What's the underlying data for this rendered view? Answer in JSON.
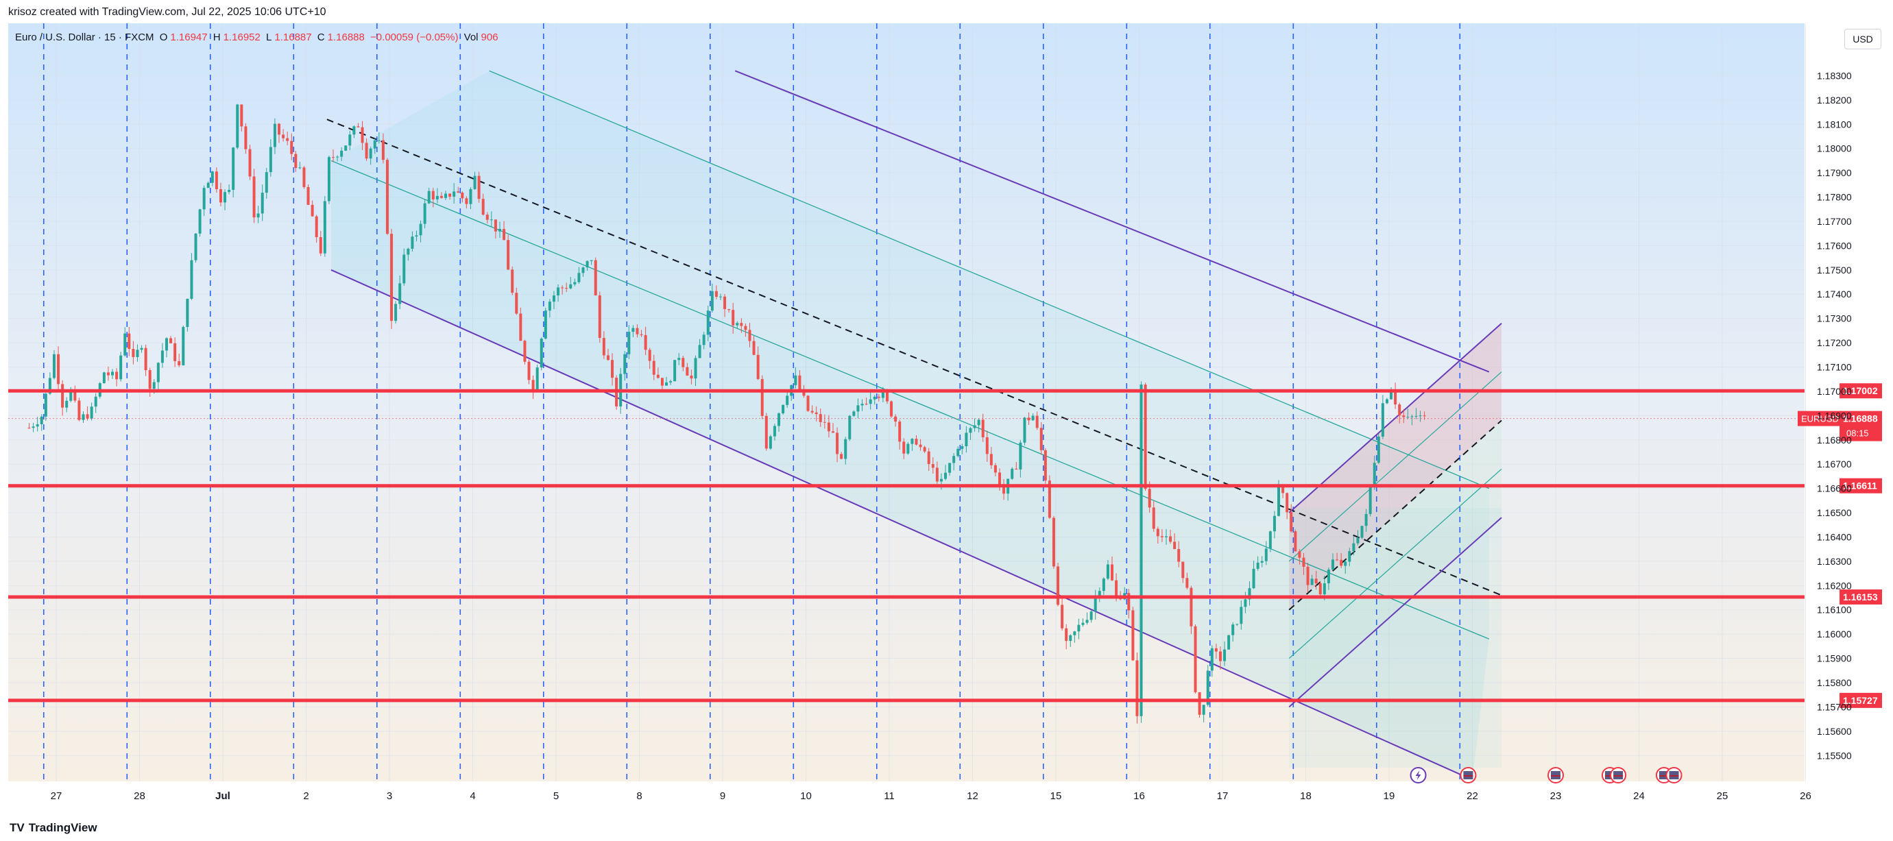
{
  "header": {
    "credit": "krisoz created with TradingView.com, Jul 22, 2025 10:06 UTC+10"
  },
  "legend": {
    "symbol": "Euro / U.S. Dollar · 15 · FXCM",
    "open_label": "O",
    "open": "1.16947",
    "high_label": "H",
    "high": "1.16952",
    "low_label": "L",
    "low": "1.16887",
    "close_label": "C",
    "close": "1.16888",
    "change": "−0.00059 (−0.05%)",
    "vol_label": "Vol",
    "vol": "906"
  },
  "currency_button": "USD",
  "footer": {
    "brand": "TradingView",
    "logo": "TV"
  },
  "colors": {
    "up": "#26a69a",
    "down": "#ef5350",
    "level": "#f23645",
    "channel": "#673ab7",
    "fib": "#26a69a",
    "vline": "#2962ff"
  },
  "chart_data": {
    "type": "line",
    "symbol": "EURUSD",
    "ylim": [
      1.1545,
      1.184
    ],
    "y_ticks": [
      "1.18300",
      "1.18200",
      "1.18100",
      "1.18000",
      "1.17900",
      "1.17800",
      "1.17700",
      "1.17600",
      "1.17500",
      "1.17400",
      "1.17300",
      "1.17200",
      "1.17100",
      "1.17000",
      "1.16900",
      "1.16800",
      "1.16700",
      "1.16600",
      "1.16500",
      "1.16400",
      "1.16300",
      "1.16200",
      "1.16100",
      "1.16000",
      "1.15900",
      "1.15800",
      "1.15700",
      "1.15600",
      "1.15500"
    ],
    "x_ticks": [
      "27",
      "28",
      "Jul",
      "2",
      "3",
      "4",
      "5",
      "8",
      "9",
      "10",
      "11",
      "12",
      "15",
      "16",
      "17",
      "18",
      "19",
      "22",
      "23",
      "24",
      "25",
      "26"
    ],
    "x_tick_index": [
      0,
      1,
      2,
      3,
      4,
      5,
      6,
      7,
      8,
      9,
      10,
      11,
      12,
      13,
      14,
      15,
      16,
      17,
      18,
      19,
      20,
      21
    ],
    "horizontal_levels": [
      {
        "value": 1.17002,
        "label": "1.17002"
      },
      {
        "value": 1.16611,
        "label": "1.16611"
      },
      {
        "value": 1.16153,
        "label": "1.16153"
      },
      {
        "value": 1.15727,
        "label": "1.15727"
      }
    ],
    "current_price": {
      "symbol": "EURUSD",
      "value": 1.16888,
      "label": "1.16888",
      "countdown": "08:15"
    },
    "price_path": [
      [
        -0.3,
        1.1685
      ],
      [
        -0.15,
        1.169
      ],
      [
        0.0,
        1.1715
      ],
      [
        0.1,
        1.1695
      ],
      [
        0.2,
        1.17
      ],
      [
        0.3,
        1.1688
      ],
      [
        0.45,
        1.1692
      ],
      [
        0.6,
        1.1708
      ],
      [
        0.75,
        1.1705
      ],
      [
        0.85,
        1.1725
      ],
      [
        0.95,
        1.1712
      ],
      [
        1.05,
        1.172
      ],
      [
        1.15,
        1.17
      ],
      [
        1.25,
        1.1712
      ],
      [
        1.35,
        1.1722
      ],
      [
        1.5,
        1.171
      ],
      [
        1.6,
        1.174
      ],
      [
        1.7,
        1.1765
      ],
      [
        1.8,
        1.1785
      ],
      [
        1.9,
        1.179
      ],
      [
        2.0,
        1.178
      ],
      [
        2.1,
        1.1782
      ],
      [
        2.2,
        1.182
      ],
      [
        2.3,
        1.18
      ],
      [
        2.42,
        1.1768
      ],
      [
        2.5,
        1.1782
      ],
      [
        2.65,
        1.1808
      ],
      [
        2.8,
        1.1802
      ],
      [
        2.95,
        1.179
      ],
      [
        3.1,
        1.177
      ],
      [
        3.2,
        1.1758
      ],
      [
        3.3,
        1.1795
      ],
      [
        3.5,
        1.1802
      ],
      [
        3.65,
        1.181
      ],
      [
        3.75,
        1.1798
      ],
      [
        3.88,
        1.1805
      ],
      [
        3.97,
        1.179
      ],
      [
        4.05,
        1.1728
      ],
      [
        4.2,
        1.1755
      ],
      [
        4.35,
        1.1765
      ],
      [
        4.5,
        1.1782
      ],
      [
        4.65,
        1.1778
      ],
      [
        4.8,
        1.1783
      ],
      [
        4.95,
        1.1778
      ],
      [
        5.05,
        1.1788
      ],
      [
        5.15,
        1.1775
      ],
      [
        5.25,
        1.177
      ],
      [
        5.4,
        1.1762
      ],
      [
        5.5,
        1.174
      ],
      [
        5.6,
        1.172
      ],
      [
        5.75,
        1.17
      ],
      [
        5.9,
        1.1735
      ],
      [
        6.05,
        1.1742
      ],
      [
        6.25,
        1.1745
      ],
      [
        6.45,
        1.1755
      ],
      [
        6.55,
        1.1722
      ],
      [
        6.65,
        1.1712
      ],
      [
        6.75,
        1.1695
      ],
      [
        6.9,
        1.1726
      ],
      [
        7.05,
        1.1725
      ],
      [
        7.2,
        1.1708
      ],
      [
        7.35,
        1.1702
      ],
      [
        7.5,
        1.1715
      ],
      [
        7.65,
        1.1705
      ],
      [
        7.8,
        1.1725
      ],
      [
        7.92,
        1.1742
      ],
      [
        8.05,
        1.1735
      ],
      [
        8.15,
        1.1728
      ],
      [
        8.3,
        1.1725
      ],
      [
        8.42,
        1.1712
      ],
      [
        8.5,
        1.169
      ],
      [
        8.55,
        1.1678
      ],
      [
        8.68,
        1.169
      ],
      [
        8.8,
        1.17
      ],
      [
        8.9,
        1.1705
      ],
      [
        9.05,
        1.1692
      ],
      [
        9.2,
        1.1688
      ],
      [
        9.35,
        1.1682
      ],
      [
        9.45,
        1.167
      ],
      [
        9.55,
        1.1688
      ],
      [
        9.7,
        1.1695
      ],
      [
        9.85,
        1.17
      ],
      [
        9.95,
        1.1698
      ],
      [
        10.1,
        1.1688
      ],
      [
        10.2,
        1.1675
      ],
      [
        10.35,
        1.168
      ],
      [
        10.5,
        1.167
      ],
      [
        10.65,
        1.1662
      ],
      [
        10.8,
        1.1673
      ],
      [
        10.95,
        1.1682
      ],
      [
        11.1,
        1.1688
      ],
      [
        11.25,
        1.167
      ],
      [
        11.4,
        1.1658
      ],
      [
        11.55,
        1.167
      ],
      [
        11.65,
        1.1688
      ],
      [
        11.75,
        1.169
      ],
      [
        11.83,
        1.168
      ],
      [
        11.92,
        1.166
      ],
      [
        11.98,
        1.1638
      ],
      [
        12.05,
        1.161
      ],
      [
        12.15,
        1.1595
      ],
      [
        12.3,
        1.1603
      ],
      [
        12.45,
        1.161
      ],
      [
        12.55,
        1.162
      ],
      [
        12.65,
        1.1628
      ],
      [
        12.75,
        1.1615
      ],
      [
        12.85,
        1.1618
      ],
      [
        12.92,
        1.1605
      ],
      [
        12.98,
        1.157
      ],
      [
        13.0,
        1.1568
      ],
      [
        13.03,
        1.168
      ],
      [
        13.06,
        1.1712
      ],
      [
        13.1,
        1.166
      ],
      [
        13.2,
        1.1645
      ],
      [
        13.3,
        1.164
      ],
      [
        13.45,
        1.1635
      ],
      [
        13.55,
        1.1625
      ],
      [
        13.62,
        1.1615
      ],
      [
        13.7,
        1.1578
      ],
      [
        13.78,
        1.156
      ],
      [
        13.83,
        1.1585
      ],
      [
        13.9,
        1.1592
      ],
      [
        14.0,
        1.159
      ],
      [
        14.1,
        1.1598
      ],
      [
        14.25,
        1.161
      ],
      [
        14.4,
        1.1625
      ],
      [
        14.55,
        1.1635
      ],
      [
        14.72,
        1.1662
      ],
      [
        14.8,
        1.1652
      ],
      [
        14.9,
        1.1635
      ],
      [
        15.05,
        1.1622
      ],
      [
        15.2,
        1.1618
      ],
      [
        15.35,
        1.163
      ],
      [
        15.5,
        1.1628
      ],
      [
        15.6,
        1.1638
      ],
      [
        15.75,
        1.1648
      ],
      [
        15.85,
        1.1672
      ],
      [
        15.95,
        1.1695
      ],
      [
        16.05,
        1.1702
      ],
      [
        16.15,
        1.169
      ],
      [
        16.25,
        1.1688
      ],
      [
        16.35,
        1.169
      ],
      [
        16.42,
        1.16888
      ]
    ],
    "candle_range_days": [
      -0.35,
      16.42
    ],
    "vertical_session_lines": [
      -0.15,
      0.85,
      1.85,
      2.85,
      3.85,
      4.85,
      5.85,
      6.85,
      7.85,
      8.85,
      9.85,
      10.85,
      11.85,
      12.85,
      13.85,
      14.85,
      15.85,
      16.85
    ],
    "main_channel": {
      "upper": [
        [
          8.15,
          1.1832
        ],
        [
          17.2,
          1.1708
        ]
      ],
      "lower": [
        [
          3.3,
          1.175
        ],
        [
          17.0,
          1.154
        ]
      ],
      "inner1": [
        [
          3.3,
          1.1795
        ],
        [
          17.2,
          1.1598
        ]
      ],
      "inner2": [
        [
          5.2,
          1.1832
        ],
        [
          17.2,
          1.166
        ]
      ]
    },
    "down_midline": [
      [
        3.25,
        1.1812
      ],
      [
        17.35,
        1.1616
      ]
    ],
    "rising_channel": {
      "upper": [
        [
          14.8,
          1.165
        ],
        [
          17.35,
          1.1728
        ]
      ],
      "lower": [
        [
          14.8,
          1.157
        ],
        [
          17.35,
          1.1648
        ]
      ],
      "inner_upper": [
        [
          14.8,
          1.163
        ],
        [
          17.35,
          1.1708
        ]
      ],
      "inner_lower": [
        [
          14.8,
          1.159
        ],
        [
          17.35,
          1.1668
        ]
      ],
      "mid": [
        [
          14.8,
          1.161
        ],
        [
          17.35,
          1.1688
        ]
      ],
      "box_x": [
        14.8,
        17.35
      ]
    },
    "event_markers": [
      16.35,
      16.95,
      18.0,
      18.65,
      18.75,
      19.3,
      19.42
    ]
  }
}
